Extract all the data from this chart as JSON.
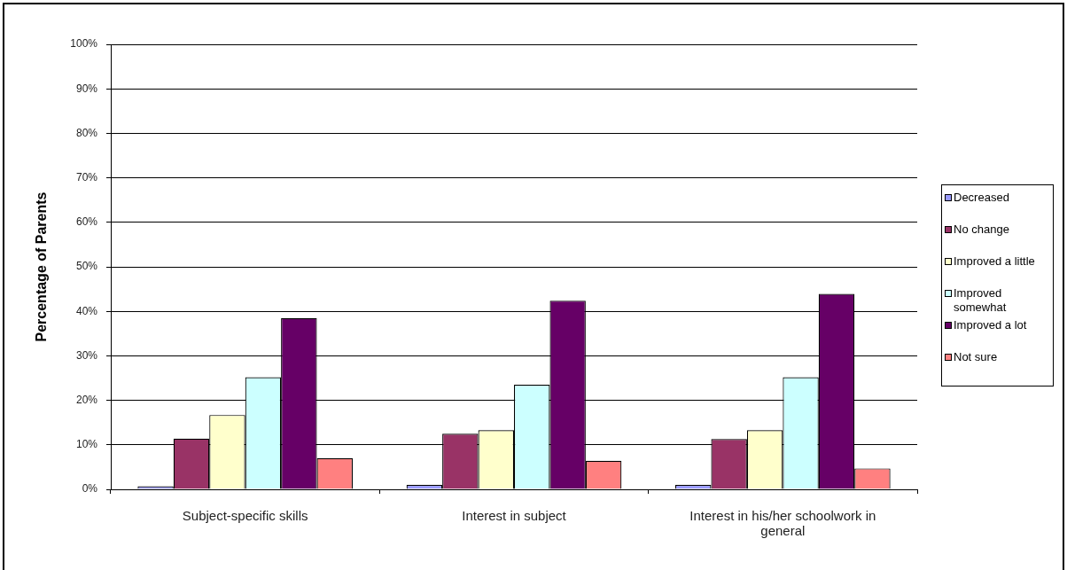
{
  "chart_data": {
    "type": "bar",
    "ylabel": "Percentage of Parents",
    "categories": [
      "Subject-specific skills",
      "Interest in subject",
      "Interest in his/her schoolwork in general"
    ],
    "series": [
      {
        "name": "Decreased",
        "color": "#9999ff",
        "values": [
          0.7,
          1.0,
          1.0
        ]
      },
      {
        "name": "No change",
        "color": "#993366",
        "values": [
          11.4,
          12.5,
          11.3
        ]
      },
      {
        "name": "Improved a little",
        "color": "#ffffcc",
        "values": [
          16.7,
          13.3,
          13.3
        ]
      },
      {
        "name": "Improved somewhat",
        "color": "#ccffff",
        "values": [
          25.2,
          23.5,
          25.2
        ]
      },
      {
        "name": "Improved a lot",
        "color": "#660066",
        "values": [
          38.5,
          42.4,
          43.9
        ]
      },
      {
        "name": "Not sure",
        "color": "#ff8080",
        "values": [
          7.0,
          6.4,
          4.7
        ]
      }
    ],
    "ylim": [
      0,
      100
    ],
    "yticks": [
      {
        "value": 0,
        "label": "0%"
      },
      {
        "value": 10,
        "label": "10%"
      },
      {
        "value": 20,
        "label": "20%"
      },
      {
        "value": 30,
        "label": "30%"
      },
      {
        "value": 40,
        "label": "40%"
      },
      {
        "value": 50,
        "label": "50%"
      },
      {
        "value": 60,
        "label": "60%"
      },
      {
        "value": 70,
        "label": "70%"
      },
      {
        "value": 80,
        "label": "80%"
      },
      {
        "value": 90,
        "label": "90%"
      },
      {
        "value": 100,
        "label": "100%"
      }
    ],
    "grid": "y",
    "legend": "right"
  }
}
